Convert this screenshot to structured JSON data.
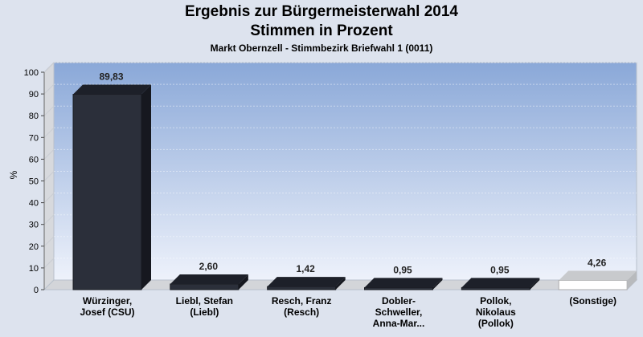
{
  "chart_data": {
    "type": "bar",
    "title": "Ergebnis zur Bürgermeisterwahl 2014",
    "subtitle": "Stimmen in Prozent",
    "caption": "Markt Obernzell - Stimmbezirk Briefwahl 1 (0011)",
    "ylabel": "%",
    "ylim": [
      0,
      100
    ],
    "yticks": [
      0,
      10,
      20,
      30,
      40,
      50,
      60,
      70,
      80,
      90,
      100
    ],
    "categories": [
      [
        "Würzinger,",
        "Josef (CSU)"
      ],
      [
        "Liebl, Stefan",
        "(Liebl)"
      ],
      [
        "Resch, Franz",
        "(Resch)"
      ],
      [
        "Dobler-",
        "Schweller,",
        "Anna-Mar..."
      ],
      [
        "Pollok,",
        "Nikolaus",
        "(Pollok)"
      ],
      [
        "(Sonstige)"
      ]
    ],
    "values": [
      89.83,
      2.6,
      1.42,
      0.95,
      0.95,
      4.26
    ],
    "value_labels": [
      "89,83",
      "2,60",
      "1,42",
      "0,95",
      "0,95",
      "4,26"
    ],
    "bar_colors": [
      "#2b2f3a",
      "#2b2f3a",
      "#2b2f3a",
      "#2b2f3a",
      "#2b2f3a",
      "#ffffff"
    ],
    "grid": true
  }
}
